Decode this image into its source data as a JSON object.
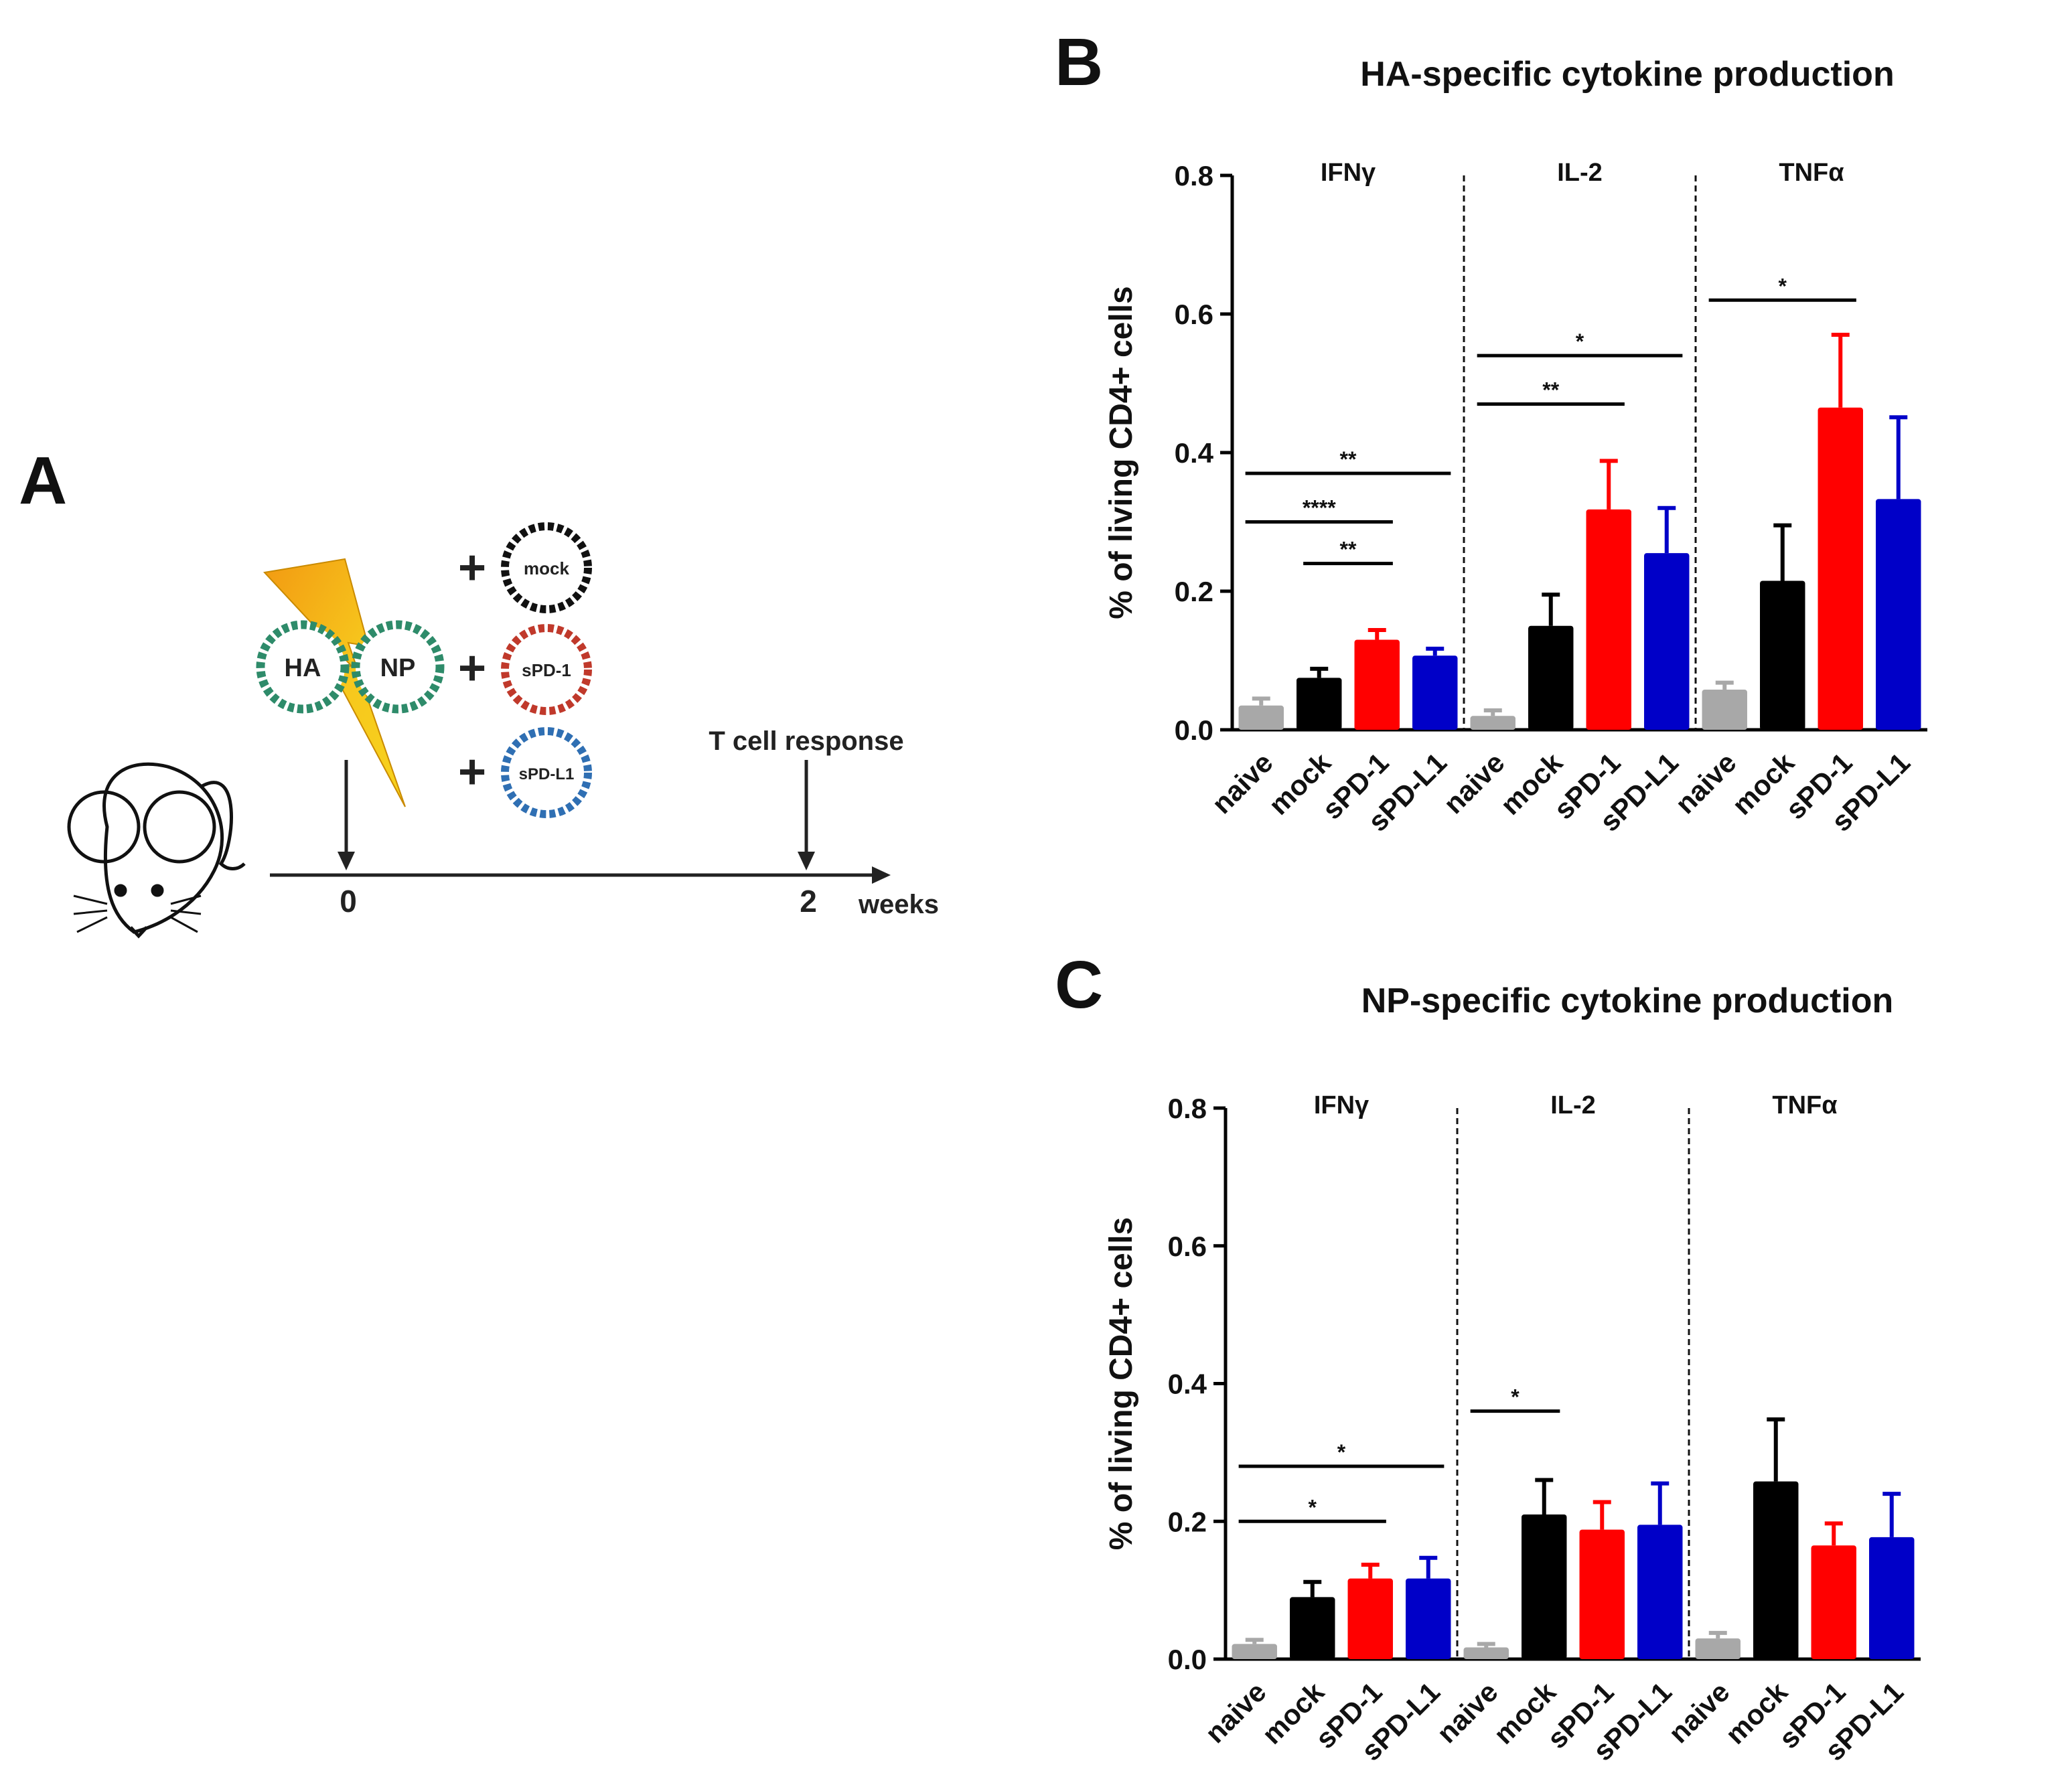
{
  "panels": {
    "a": {
      "letter": "A"
    },
    "b": {
      "letter": "B"
    },
    "c": {
      "letter": "C"
    }
  },
  "diagram": {
    "left_plasmids": [
      "HA",
      "NP"
    ],
    "right_plasmids": [
      "mock",
      "sPD-1",
      "sPD-L1"
    ],
    "plus_sign": "+",
    "timeline_label": "T cell response",
    "time_points": [
      "0",
      "2"
    ],
    "time_unit": "weeks",
    "colors": {
      "bolt": "#f7c81d",
      "bolt_dark": "#f29a12",
      "ha_np": "#2e8b6a",
      "mock": "#111111",
      "spd1": "#c0392b",
      "spdl1": "#2f6fb3"
    }
  },
  "chart_data": [
    {
      "type": "bar",
      "title": "HA-specific cytokine production",
      "ylabel": "% of living CD4+ cells",
      "xlabel": "",
      "ylim": [
        0,
        0.8
      ],
      "yticks": [
        "0.0",
        "0.2",
        "0.4",
        "0.6",
        "0.8"
      ],
      "groups": [
        "IFNγ",
        "IL-2",
        "TNFα"
      ],
      "categories": [
        "naive",
        "mock",
        "sPD-1",
        "sPD-L1"
      ],
      "colors": [
        "#a8a8a8",
        "#000000",
        "#ff0000",
        "#0000c8"
      ],
      "series": [
        {
          "name": "IFNγ",
          "values": [
            0.035,
            0.075,
            0.13,
            0.107
          ],
          "errors": [
            0.01,
            0.013,
            0.014,
            0.01
          ]
        },
        {
          "name": "IL-2",
          "values": [
            0.02,
            0.15,
            0.318,
            0.255
          ],
          "errors": [
            0.008,
            0.045,
            0.07,
            0.065
          ]
        },
        {
          "name": "TNFα",
          "values": [
            0.058,
            0.215,
            0.465,
            0.333
          ],
          "errors": [
            0.01,
            0.08,
            0.105,
            0.118
          ]
        }
      ],
      "significance": [
        {
          "group": 0,
          "from": 0,
          "to": 3,
          "label": "**",
          "y": 0.37
        },
        {
          "group": 0,
          "from": 0,
          "to": 2,
          "label": "****",
          "y": 0.3
        },
        {
          "group": 0,
          "from": 1,
          "to": 2,
          "label": "**",
          "y": 0.24
        },
        {
          "group": 1,
          "from": 0,
          "to": 3,
          "label": "*",
          "y": 0.54
        },
        {
          "group": 1,
          "from": 0,
          "to": 2,
          "label": "**",
          "y": 0.47
        },
        {
          "group": 2,
          "from": 0,
          "to": 2,
          "label": "*",
          "y": 0.62
        }
      ]
    },
    {
      "type": "bar",
      "title": "NP-specific cytokine production",
      "ylabel": "% of living CD4+ cells",
      "xlabel": "",
      "ylim": [
        0,
        0.8
      ],
      "yticks": [
        "0.0",
        "0.2",
        "0.4",
        "0.6",
        "0.8"
      ],
      "groups": [
        "IFNγ",
        "IL-2",
        "TNFα"
      ],
      "categories": [
        "naive",
        "mock",
        "sPD-1",
        "sPD-L1"
      ],
      "colors": [
        "#a8a8a8",
        "#000000",
        "#ff0000",
        "#0000c8"
      ],
      "series": [
        {
          "name": "IFNγ",
          "values": [
            0.022,
            0.09,
            0.117,
            0.117
          ],
          "errors": [
            0.006,
            0.022,
            0.02,
            0.03
          ]
        },
        {
          "name": "IL-2",
          "values": [
            0.017,
            0.21,
            0.188,
            0.195
          ],
          "errors": [
            0.005,
            0.05,
            0.04,
            0.06
          ]
        },
        {
          "name": "TNFα",
          "values": [
            0.03,
            0.258,
            0.165,
            0.177
          ],
          "errors": [
            0.008,
            0.09,
            0.032,
            0.063
          ]
        }
      ],
      "significance": [
        {
          "group": 0,
          "from": 0,
          "to": 3,
          "label": "*",
          "y": 0.28
        },
        {
          "group": 0,
          "from": 0,
          "to": 2,
          "label": "*",
          "y": 0.2
        },
        {
          "group": 1,
          "from": 0,
          "to": 1,
          "label": "*",
          "y": 0.36
        }
      ]
    }
  ]
}
